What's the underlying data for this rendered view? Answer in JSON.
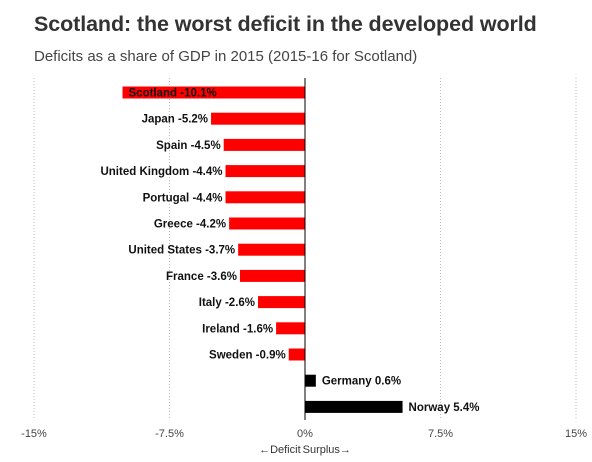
{
  "chart_data": {
    "type": "bar",
    "orientation": "horizontal",
    "title": "Scotland: the worst deficit in the developed world",
    "subtitle": "Deficits as a share of GDP in 2015 (2015-16 for Scotland)",
    "categories": [
      "Scotland",
      "Japan",
      "Spain",
      "United Kingdom",
      "Portugal",
      "Greece",
      "United States",
      "France",
      "Italy",
      "Ireland",
      "Sweden",
      "Germany",
      "Norway"
    ],
    "values": [
      -10.1,
      -5.2,
      -4.5,
      -4.4,
      -4.4,
      -4.2,
      -3.7,
      -3.6,
      -2.6,
      -1.6,
      -0.9,
      0.6,
      5.4
    ],
    "data_labels": [
      "Scotland -10.1%",
      "Japan -5.2%",
      "Spain -4.5%",
      "United Kingdom -4.4%",
      "Portugal -4.4%",
      "Greece -4.2%",
      "United States -3.7%",
      "France -3.6%",
      "Italy -2.6%",
      "Ireland -1.6%",
      "Sweden -0.9%",
      "Germany 0.6%",
      "Norway 5.4%"
    ],
    "xlim": [
      -15,
      15
    ],
    "x_ticks": [
      -15,
      -7.5,
      0,
      7.5,
      15
    ],
    "x_tick_labels": [
      "-15%",
      "-7.5%",
      "0%",
      "7.5%",
      "15%"
    ],
    "xlabel_left": "←Deficit",
    "xlabel_right": "Surplus→",
    "grid": true,
    "legend": "none",
    "colors": {
      "negative": "#ff0000",
      "positive": "#000000",
      "grid": "#bbbbbb",
      "zero_line": "#000000"
    }
  }
}
